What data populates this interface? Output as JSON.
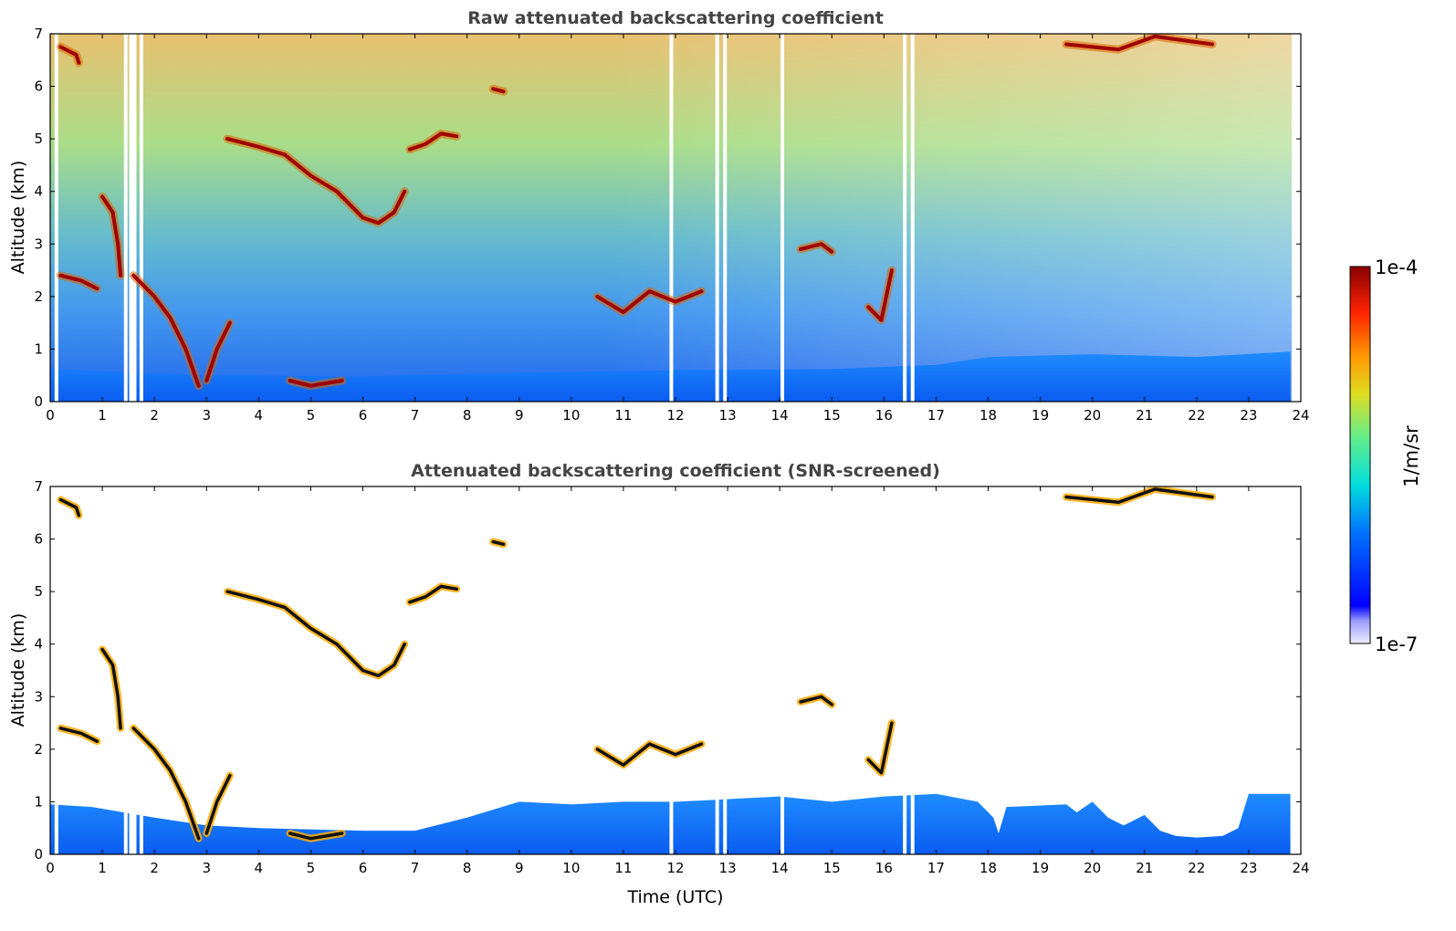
{
  "chart_data": [
    {
      "type": "heatmap",
      "title": "Raw attenuated backscattering coefficient",
      "xlabel": "",
      "ylabel": "Altitude (km)",
      "xlim": [
        0,
        24
      ],
      "ylim": [
        0,
        7
      ],
      "x_ticks": [
        "0",
        "1",
        "2",
        "3",
        "4",
        "5",
        "6",
        "7",
        "8",
        "9",
        "10",
        "11",
        "12",
        "13",
        "14",
        "15",
        "16",
        "17",
        "18",
        "19",
        "20",
        "21",
        "22",
        "23",
        "24"
      ],
      "y_ticks": [
        "0",
        "1",
        "2",
        "3",
        "4",
        "5",
        "6",
        "7"
      ],
      "data_gaps_utc": [
        0.12,
        1.45,
        1.55,
        1.62,
        1.75,
        11.92,
        12.8,
        12.95,
        14.05,
        16.4,
        16.55
      ],
      "boundary_layer_top_km": [
        [
          0,
          0.62
        ],
        [
          3,
          0.5
        ],
        [
          6,
          0.48
        ],
        [
          9,
          0.55
        ],
        [
          12,
          0.6
        ],
        [
          15,
          0.62
        ],
        [
          17,
          0.7
        ],
        [
          18,
          0.85
        ],
        [
          20,
          0.9
        ],
        [
          22,
          0.85
        ],
        [
          23.8,
          0.95
        ]
      ],
      "cloud_layers": [
        {
          "points": [
            [
              0.2,
              6.75
            ],
            [
              0.5,
              6.6
            ],
            [
              0.55,
              6.45
            ]
          ]
        },
        {
          "points": [
            [
              3.4,
              5.0
            ],
            [
              4.0,
              4.85
            ],
            [
              4.5,
              4.7
            ],
            [
              5.0,
              4.3
            ],
            [
              5.5,
              4.0
            ],
            [
              6.0,
              3.5
            ],
            [
              6.3,
              3.4
            ],
            [
              6.6,
              3.6
            ],
            [
              6.8,
              4.0
            ]
          ]
        },
        {
          "points": [
            [
              6.9,
              4.8
            ],
            [
              7.2,
              4.9
            ],
            [
              7.5,
              5.1
            ],
            [
              7.8,
              5.05
            ]
          ]
        },
        {
          "points": [
            [
              8.5,
              5.95
            ],
            [
              8.7,
              5.9
            ]
          ]
        },
        {
          "points": [
            [
              1.0,
              3.9
            ],
            [
              1.2,
              3.6
            ],
            [
              1.3,
              3.0
            ],
            [
              1.35,
              2.4
            ]
          ]
        },
        {
          "points": [
            [
              0.2,
              2.4
            ],
            [
              0.6,
              2.3
            ],
            [
              0.9,
              2.15
            ]
          ]
        },
        {
          "points": [
            [
              1.6,
              2.4
            ],
            [
              2.0,
              2.0
            ],
            [
              2.3,
              1.6
            ],
            [
              2.6,
              1.0
            ],
            [
              2.85,
              0.3
            ]
          ]
        },
        {
          "points": [
            [
              3.0,
              0.4
            ],
            [
              3.2,
              1.0
            ],
            [
              3.45,
              1.5
            ]
          ]
        },
        {
          "points": [
            [
              4.6,
              0.4
            ],
            [
              5.0,
              0.3
            ],
            [
              5.6,
              0.4
            ]
          ]
        },
        {
          "points": [
            [
              14.4,
              2.9
            ],
            [
              14.8,
              3.0
            ],
            [
              15.0,
              2.85
            ]
          ]
        },
        {
          "points": [
            [
              15.7,
              1.8
            ],
            [
              15.95,
              1.55
            ],
            [
              16.15,
              2.5
            ]
          ]
        },
        {
          "points": [
            [
              10.5,
              2.0
            ],
            [
              11.0,
              1.7
            ],
            [
              11.5,
              2.1
            ],
            [
              12.0,
              1.9
            ],
            [
              12.5,
              2.1
            ]
          ]
        },
        {
          "points": [
            [
              19.5,
              6.8
            ],
            [
              20.5,
              6.7
            ],
            [
              21.2,
              6.95
            ],
            [
              22.3,
              6.8
            ]
          ]
        }
      ]
    },
    {
      "type": "heatmap",
      "title": "Attenuated backscattering coefficient (SNR-screened)",
      "xlabel": "Time (UTC)",
      "ylabel": "Altitude (km)",
      "xlim": [
        0,
        24
      ],
      "ylim": [
        0,
        7
      ],
      "x_ticks": [
        "0",
        "1",
        "2",
        "3",
        "4",
        "5",
        "6",
        "7",
        "8",
        "9",
        "10",
        "11",
        "12",
        "13",
        "14",
        "15",
        "16",
        "17",
        "18",
        "19",
        "20",
        "21",
        "22",
        "23",
        "24"
      ],
      "y_ticks": [
        "0",
        "1",
        "2",
        "3",
        "4",
        "5",
        "6",
        "7"
      ],
      "boundary_layer_top_km": [
        [
          0,
          0.95
        ],
        [
          0.8,
          0.9
        ],
        [
          2.0,
          0.7
        ],
        [
          3.0,
          0.55
        ],
        [
          4.0,
          0.5
        ],
        [
          6.0,
          0.45
        ],
        [
          7.0,
          0.45
        ],
        [
          8.0,
          0.7
        ],
        [
          9.0,
          1.0
        ],
        [
          10.0,
          0.95
        ],
        [
          11.0,
          1.0
        ],
        [
          12.0,
          1.0
        ],
        [
          13.0,
          1.05
        ],
        [
          14.0,
          1.1
        ],
        [
          15.0,
          1.0
        ],
        [
          16.0,
          1.1
        ],
        [
          17.0,
          1.15
        ],
        [
          17.8,
          1.0
        ],
        [
          18.1,
          0.7
        ],
        [
          18.2,
          0.4
        ],
        [
          18.35,
          0.9
        ],
        [
          19.5,
          0.95
        ],
        [
          19.7,
          0.8
        ],
        [
          20.0,
          1.0
        ],
        [
          20.3,
          0.7
        ],
        [
          20.6,
          0.55
        ],
        [
          21.0,
          0.75
        ],
        [
          21.3,
          0.45
        ],
        [
          21.6,
          0.35
        ],
        [
          22.0,
          0.32
        ],
        [
          22.5,
          0.35
        ],
        [
          22.8,
          0.5
        ],
        [
          23.0,
          1.15
        ],
        [
          23.8,
          1.15
        ]
      ]
    }
  ],
  "colorbar": {
    "max_label": "1e-4",
    "min_label": "1e-7",
    "unit_label": "1/m/sr"
  }
}
